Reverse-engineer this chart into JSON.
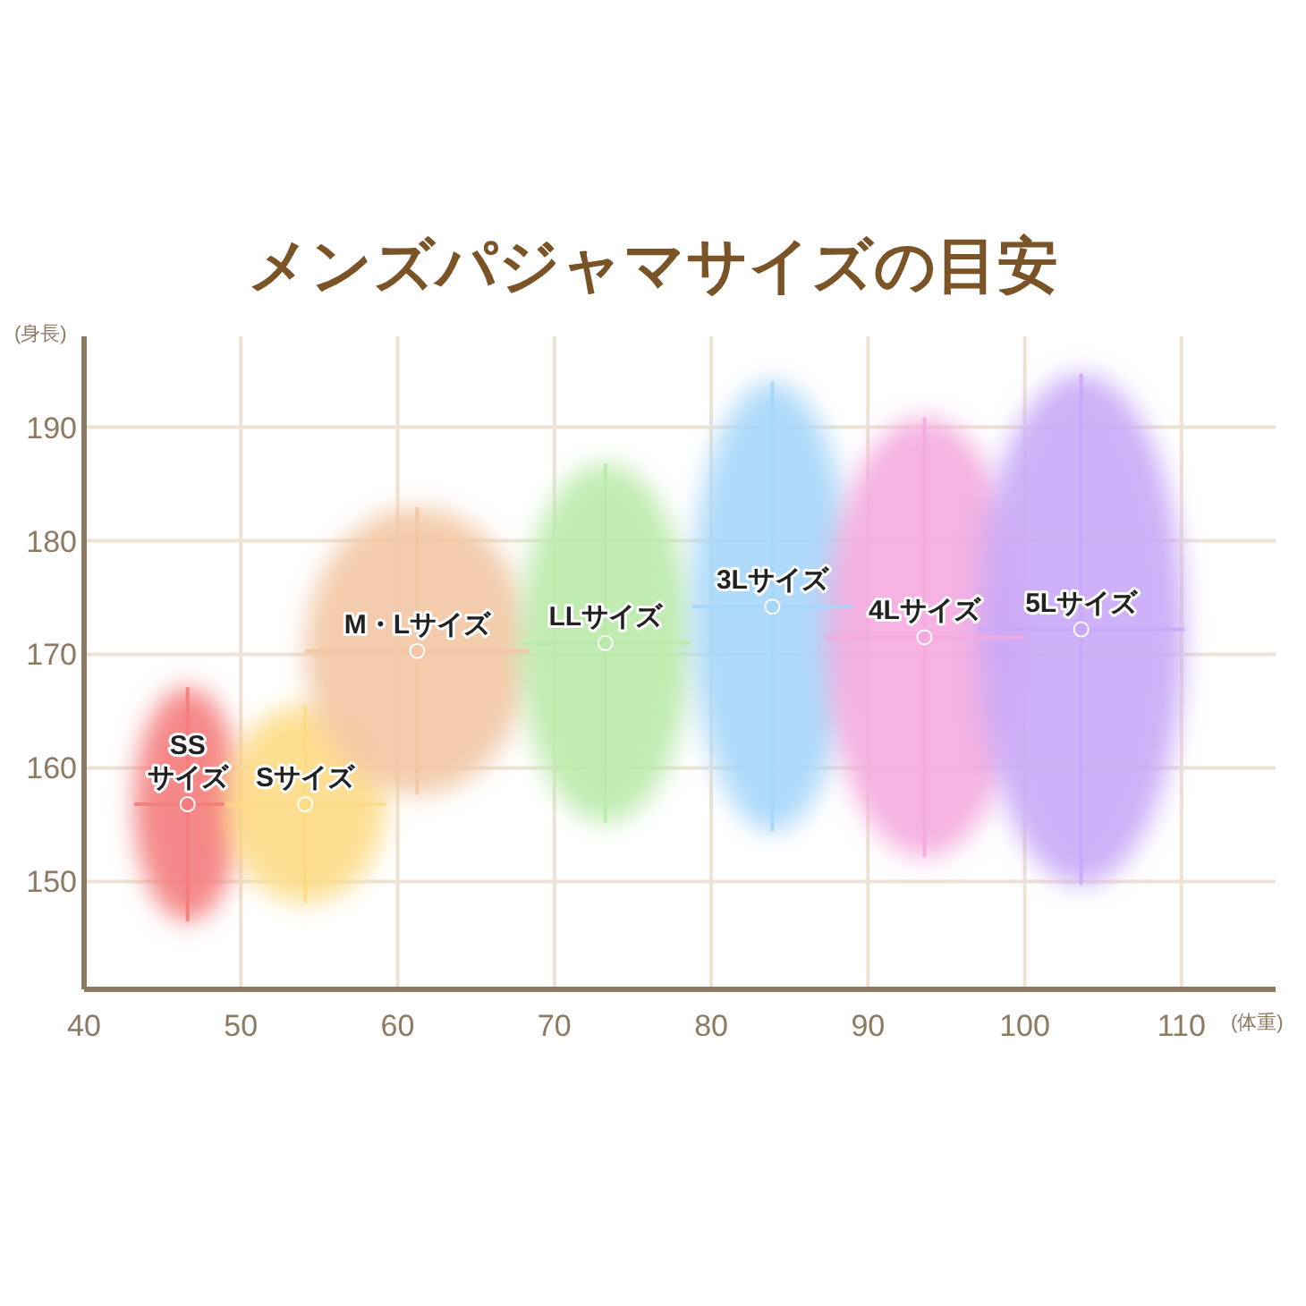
{
  "chart_data": {
    "type": "scatter",
    "title": "メンズパジャマサイズの目安",
    "xlabel": "(体重)",
    "ylabel": "(身長)",
    "xlim": [
      40,
      116
    ],
    "ylim": [
      140.5,
      198
    ],
    "xticks": [
      40,
      50,
      60,
      70,
      80,
      90,
      100,
      110
    ],
    "yticks": [
      150,
      160,
      170,
      180,
      190
    ],
    "grid": true,
    "legend": false,
    "series": [
      {
        "name": "SS\nサイズ",
        "color": "#f47c7c",
        "x": [
          46.6
        ],
        "values": [
          156.8
        ],
        "xerrors": [
          3.4
        ],
        "errors": [
          10.3
        ]
      },
      {
        "name": "Sサイズ",
        "color": "#fddc86",
        "x": [
          54.1
        ],
        "values": [
          156.8
        ],
        "xerrors": [
          5.15
        ],
        "errors": [
          8.7
        ]
      },
      {
        "name": "M・Lサイズ",
        "color": "#f2c6a4",
        "x": [
          61.25
        ],
        "values": [
          170.3
        ],
        "xerrors": [
          7.15
        ],
        "errors": [
          12.65
        ]
      },
      {
        "name": "LLサイズ",
        "color": "#b9eaaa",
        "x": [
          73.25
        ],
        "values": [
          171
        ],
        "xerrors": [
          5.45
        ],
        "errors": [
          15.8
        ]
      },
      {
        "name": "3Lサイズ",
        "color": "#a6d6fa",
        "x": [
          83.9
        ],
        "values": [
          174.2
        ],
        "xerrors": [
          5.15
        ],
        "errors": [
          19.8
        ]
      },
      {
        "name": "4Lサイズ",
        "color": "#f4aadf",
        "x": [
          93.6
        ],
        "values": [
          171.5
        ],
        "xerrors": [
          6.3
        ],
        "errors": [
          19.35
        ]
      },
      {
        "name": "5Lサイズ",
        "color": "#c9a8f7",
        "x": [
          103.6
        ],
        "values": [
          172.2
        ],
        "xerrors": [
          6.6
        ],
        "errors": [
          22.5
        ]
      }
    ]
  }
}
